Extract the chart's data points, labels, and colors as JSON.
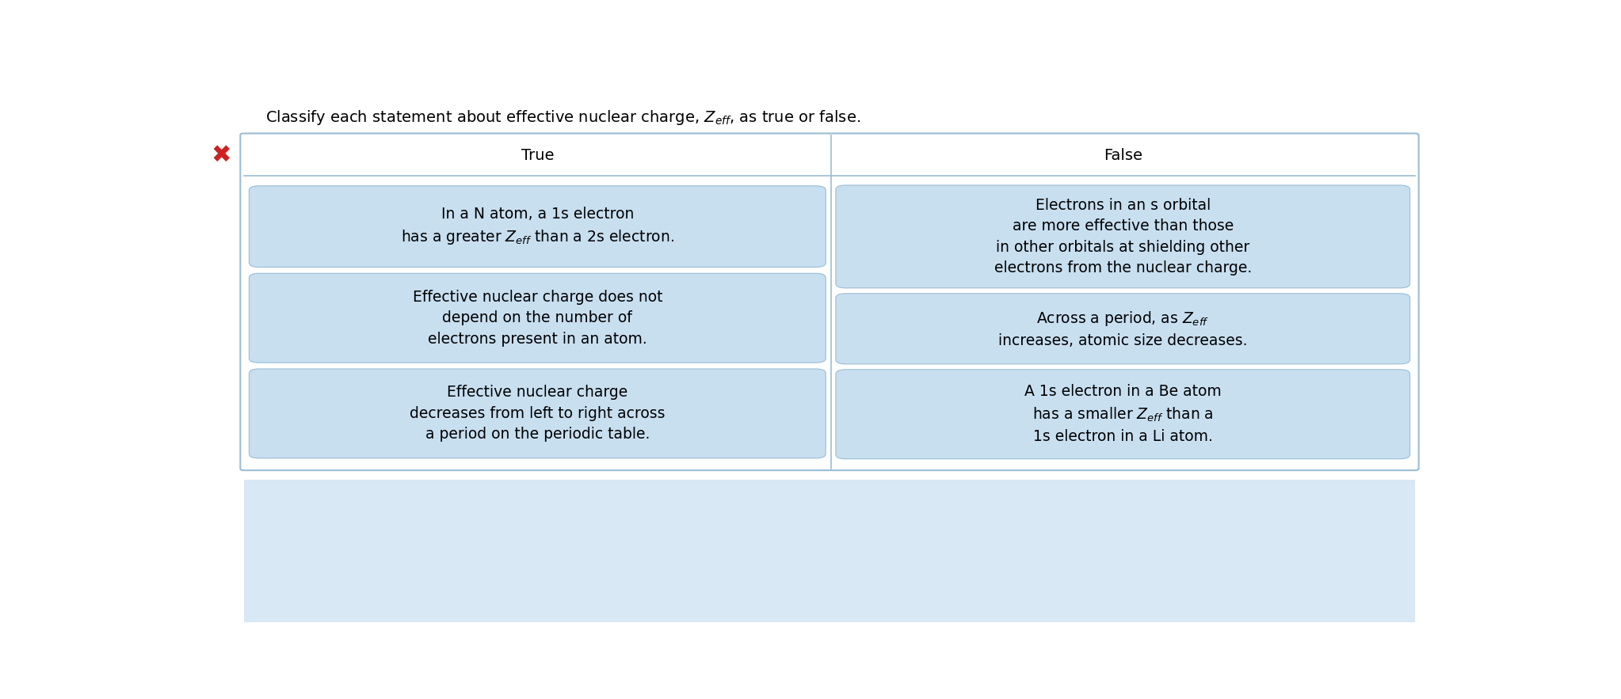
{
  "title": "Classify each statement about effective nuclear charge, $Z_{eff}$, as true or false.",
  "title_fontsize": 14,
  "col_true_label": "True",
  "col_false_label": "False",
  "header_fontsize": 14,
  "box_bg_color": "#c8dff0",
  "box_border_color": "#9bbdd4",
  "outer_border_color": "#9bbdd4",
  "bottom_bg": "#d8e8f4",
  "text_fontsize": 13.5,
  "true_statements": [
    "In a N atom, a 1s electron\nhas a greater $Z_{eff}$ than a 2s electron.",
    "Effective nuclear charge does not\ndepend on the number of\nelectrons present in an atom.",
    "Effective nuclear charge\ndecreases from left to right across\na period on the periodic table."
  ],
  "false_statements": [
    "Electrons in an s orbital\nare more effective than those\nin other orbitals at shielding other\nelectrons from the nuclear charge.",
    "Across a period, as $Z_{eff}$\nincreases, atomic size decreases.",
    "A 1s electron in a Be atom\nhas a smaller $Z_{eff}$ than a\n1s electron in a Li atom."
  ],
  "bg_color": "#ffffff",
  "fig_width": 20.46,
  "fig_height": 8.83
}
